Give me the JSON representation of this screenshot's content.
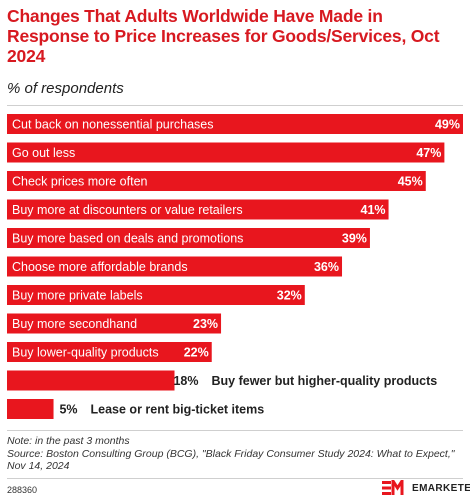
{
  "title": "Changes That Adults Worldwide Have Made in Response to Price Increases for Goods/Services, Oct 2024",
  "subtitle": "% of respondents",
  "chart_data": {
    "type": "bar",
    "orientation": "horizontal",
    "categories": [
      "Cut back on nonessential purchases",
      "Go out less",
      "Check prices more often",
      "Buy more at discounters or value retailers",
      "Buy more based on deals and promotions",
      "Choose more affordable brands",
      "Buy more private labels",
      "Buy more secondhand",
      "Buy lower-quality products",
      "Buy fewer but higher-quality products",
      "Lease or rent big-ticket items"
    ],
    "values": [
      49,
      47,
      45,
      41,
      39,
      36,
      32,
      23,
      22,
      18,
      5
    ],
    "value_labels": [
      "49%",
      "47%",
      "45%",
      "41%",
      "39%",
      "36%",
      "32%",
      "23%",
      "22%",
      "18%",
      "5%"
    ],
    "xlim": [
      0,
      49
    ],
    "grid": false,
    "bar_color": "#e8161e"
  },
  "note": "Note: in the past 3 months",
  "source": "Source: Boston Consulting Group (BCG), \"Black Friday Consumer Study 2024: What to Expect,\" Nov 14, 2024",
  "chart_id": "288360",
  "brand": {
    "logo_text": "EMARKETER",
    "logo_mark": "EM",
    "color": "#e8161e"
  }
}
